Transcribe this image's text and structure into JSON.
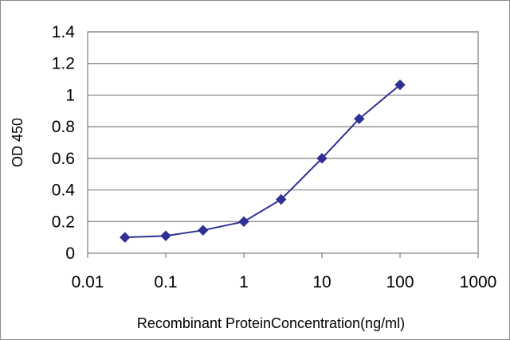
{
  "chart_data": {
    "type": "line",
    "title": "",
    "xlabel": "Recombinant ProteinConcentration(ng/ml)",
    "ylabel": "OD 450",
    "x_scale": "log",
    "xlim": [
      0.01,
      1000
    ],
    "ylim": [
      0,
      1.4
    ],
    "x_ticks": [
      0.01,
      0.1,
      1,
      10,
      100,
      1000
    ],
    "x_tick_labels": [
      "0.01",
      "0.1",
      "1",
      "10",
      "100",
      "1000"
    ],
    "y_ticks": [
      0,
      0.2,
      0.4,
      0.6,
      0.8,
      1,
      1.2,
      1.4
    ],
    "y_tick_labels": [
      "0",
      "0.2",
      "0.4",
      "0.6",
      "0.8",
      "1",
      "1.2",
      "1.4"
    ],
    "grid": "horizontal",
    "legend": "none",
    "series": [
      {
        "color": "#2f3192",
        "marker": "diamond",
        "x": [
          0.03,
          0.1,
          0.3,
          1,
          3,
          10,
          30,
          100
        ],
        "y": [
          0.1,
          0.11,
          0.145,
          0.2,
          0.34,
          0.6,
          0.85,
          1.065
        ]
      }
    ],
    "colors": {
      "line": "#2f3192",
      "grid": "#7f7f7f",
      "axis": "#7f7f7f"
    }
  }
}
